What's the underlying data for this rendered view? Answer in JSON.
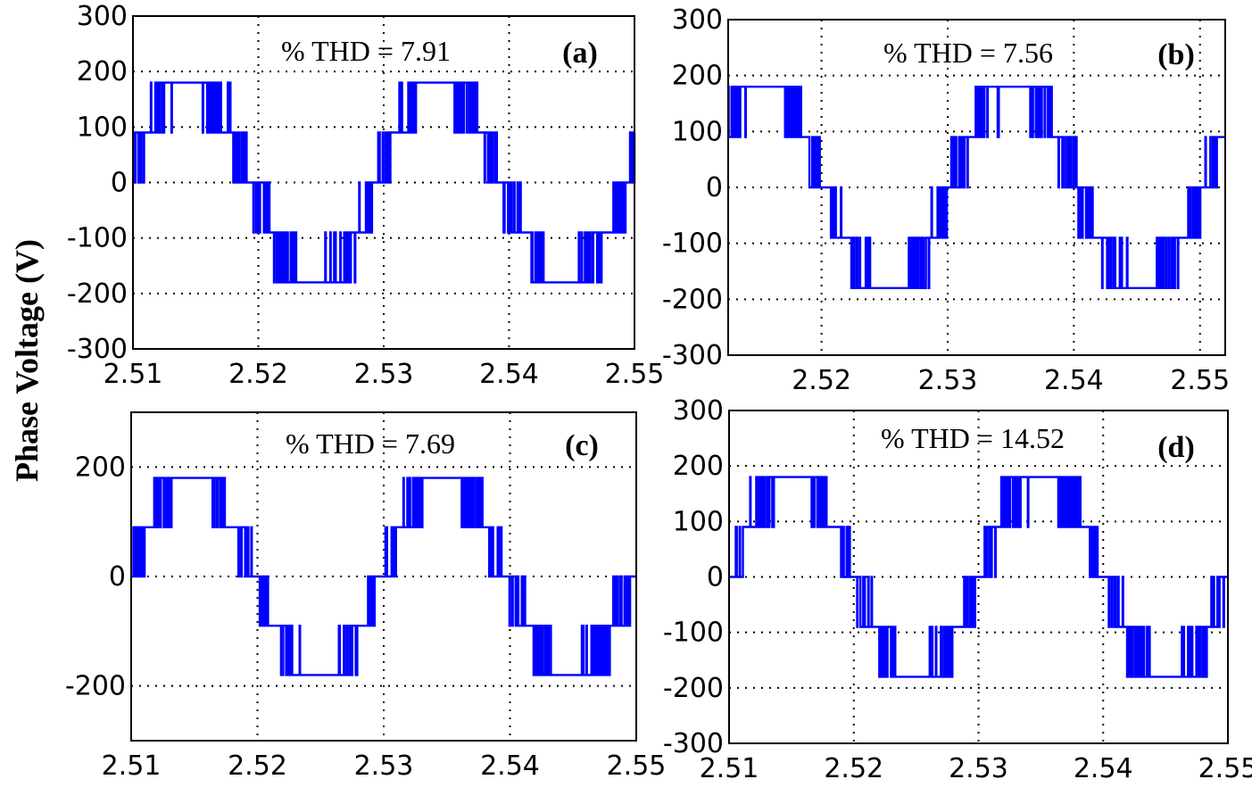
{
  "figure": {
    "ylabel": "Phase Voltage (V)"
  },
  "colors": {
    "wave": "#0000ff",
    "axes": "#000000",
    "background": "#ffffff"
  },
  "chart_data": [
    {
      "type": "line",
      "panel_label": "(a)",
      "annotation": "% THD = 7.91",
      "xlim": [
        2.51,
        2.55
      ],
      "ylim": [
        -300,
        300
      ],
      "xticks": [
        2.51,
        2.52,
        2.53,
        2.54,
        2.55
      ],
      "xtick_labels": [
        "2.51",
        "2.52",
        "2.53",
        "2.54",
        "2.55"
      ],
      "yticks": [
        -300,
        -200,
        -100,
        0,
        100,
        200,
        300
      ],
      "ytick_labels": [
        "-300",
        "-200",
        "-100",
        "0",
        "100",
        "200",
        "300"
      ],
      "grid": true,
      "frequency_hz": 50,
      "phase_deg": 10,
      "step_levels": [
        -180,
        -90,
        0,
        90,
        180
      ]
    },
    {
      "type": "line",
      "panel_label": "(b)",
      "annotation": "% THD = 7.56",
      "xlim": [
        2.5126,
        2.552
      ],
      "ylim": [
        -300,
        300
      ],
      "xticks": [
        2.52,
        2.53,
        2.54,
        2.55
      ],
      "xtick_labels": [
        "2.52",
        "2.53",
        "2.54",
        "2.55"
      ],
      "yticks": [
        -300,
        -200,
        -100,
        0,
        100,
        200,
        300
      ],
      "ytick_labels": [
        "-300",
        "-200",
        "-100",
        "0",
        "100",
        "200",
        "300"
      ],
      "grid": true,
      "frequency_hz": 50,
      "phase_deg": 43,
      "step_levels": [
        -180,
        -90,
        0,
        90,
        180
      ]
    },
    {
      "type": "line",
      "panel_label": "(c)",
      "annotation": "% THD = 7.69",
      "xlim": [
        2.51,
        2.55
      ],
      "ylim": [
        -300,
        300
      ],
      "xticks": [
        2.51,
        2.52,
        2.53,
        2.54,
        2.55
      ],
      "xtick_labels": [
        "2.51",
        "2.52",
        "2.53",
        "2.54",
        "2.55"
      ],
      "yticks": [
        -200,
        0,
        200
      ],
      "ytick_labels": [
        "-200",
        "0",
        "200"
      ],
      "grid": true,
      "frequency_hz": 50,
      "phase_deg": 5,
      "step_levels": [
        -180,
        -90,
        0,
        90,
        180
      ]
    },
    {
      "type": "line",
      "panel_label": "(d)",
      "annotation": "% THD = 14.52",
      "xlim": [
        2.51,
        2.55
      ],
      "ylim": [
        -300,
        300
      ],
      "xticks": [
        2.51,
        2.52,
        2.53,
        2.54,
        2.55
      ],
      "xtick_labels": [
        "2.51",
        "2.52",
        "2.53",
        "2.54",
        "2.55"
      ],
      "yticks": [
        -300,
        -200,
        -100,
        0,
        100,
        200,
        300
      ],
      "ytick_labels": [
        "-300",
        "-200",
        "-100",
        "0",
        "100",
        "200",
        "300"
      ],
      "grid": true,
      "frequency_hz": 50,
      "phase_deg": 0,
      "step_levels": [
        -180,
        -90,
        0,
        90,
        180
      ]
    }
  ]
}
